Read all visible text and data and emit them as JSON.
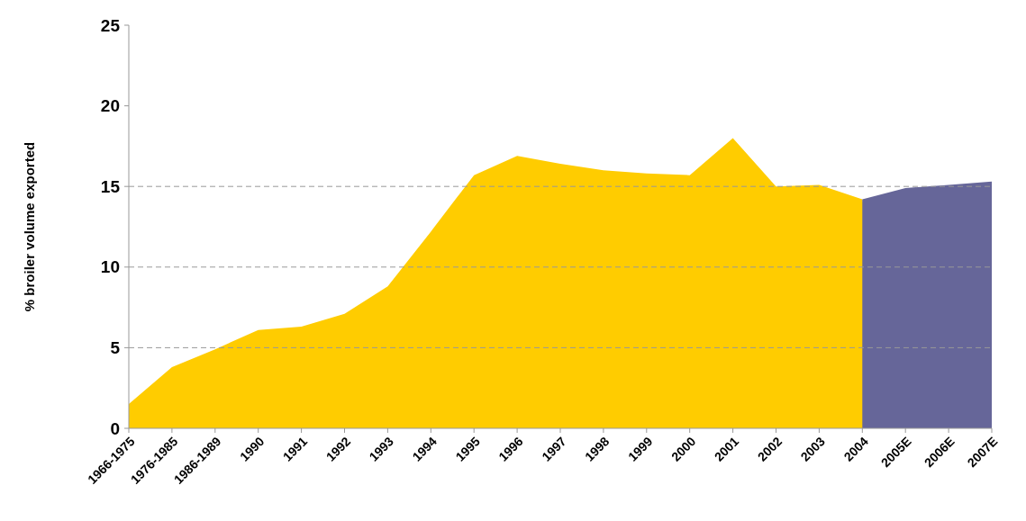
{
  "chart_data": {
    "type": "area",
    "ylabel": "% broiler volume exported",
    "categories": [
      "1966-1975",
      "1976-1985",
      "1986-1989",
      "1990",
      "1991",
      "1992",
      "1993",
      "1994",
      "1995",
      "1996",
      "1997",
      "1998",
      "1999",
      "2000",
      "2001",
      "2002",
      "2003",
      "2004",
      "2005E",
      "2006E",
      "2007E"
    ],
    "series": [
      {
        "color": "#ffcc00",
        "values": [
          1.5,
          3.8,
          4.9,
          6.1,
          6.3,
          7.1,
          8.8,
          12.2,
          15.7,
          16.9,
          16.4,
          16.0,
          15.8,
          15.7,
          18.0,
          15.0,
          15.1,
          14.2,
          0,
          null,
          null
        ]
      },
      {
        "color": "#666699",
        "values": [
          null,
          null,
          null,
          null,
          null,
          null,
          null,
          null,
          null,
          null,
          null,
          null,
          null,
          null,
          null,
          null,
          null,
          14.2,
          14.9,
          15.1,
          15.3
        ]
      }
    ],
    "ylim": [
      0,
      25
    ],
    "yticks": [
      0,
      5,
      10,
      15,
      20,
      25
    ],
    "ref_lines": [
      {
        "axis": "y",
        "value": 5,
        "color": "#999999",
        "line_style": "dashed"
      },
      {
        "axis": "y",
        "value": 10,
        "color": "#999999",
        "line_style": "dashed"
      },
      {
        "axis": "y",
        "value": 15,
        "color": "#999999",
        "line_style": "dashed"
      }
    ]
  }
}
